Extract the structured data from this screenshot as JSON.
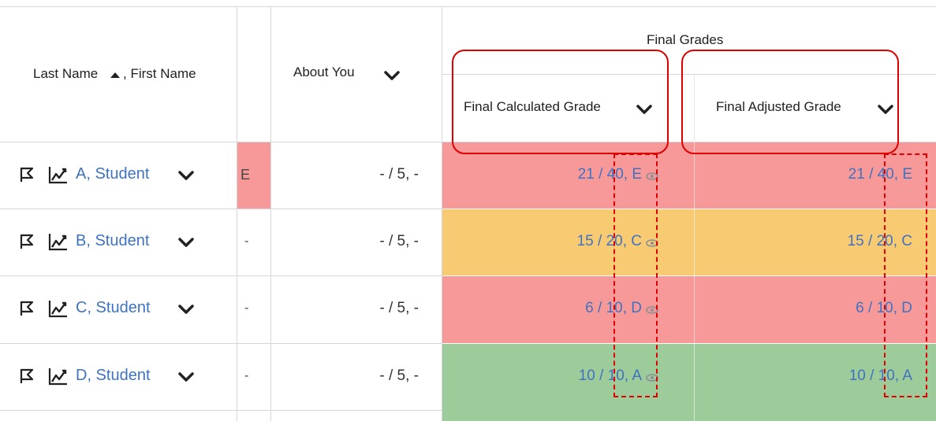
{
  "header": {
    "name_col": {
      "last": "Last Name",
      "sep": ", First Name"
    },
    "about_col": "About You",
    "group_title": "Final Grades",
    "calc_col": "Final Calculated Grade",
    "adj_col": "Final Adjusted Grade"
  },
  "colors": {
    "red": "#f79999",
    "yellow": "#f8ca72",
    "green": "#9dcb9a",
    "link": "#3f73c1",
    "annotation": "#e00000"
  },
  "rows": [
    {
      "name": "A, Student",
      "extra": "E",
      "about": "- / 5, -",
      "calc": "21 / 40, E",
      "adj": "21 / 40, E",
      "status": "red"
    },
    {
      "name": "B, Student",
      "extra": "-",
      "about": "- / 5, -",
      "calc": "15 / 20, C",
      "adj": "15 / 20, C",
      "status": "yellow"
    },
    {
      "name": "C, Student",
      "extra": "-",
      "about": "- / 5, -",
      "calc": "6 / 10, D",
      "adj": "6 / 10, D",
      "status": "red"
    },
    {
      "name": "D, Student",
      "extra": "-",
      "about": "- / 5, -",
      "calc": "10 / 10, A",
      "adj": "10 / 10, A",
      "status": "green"
    }
  ]
}
